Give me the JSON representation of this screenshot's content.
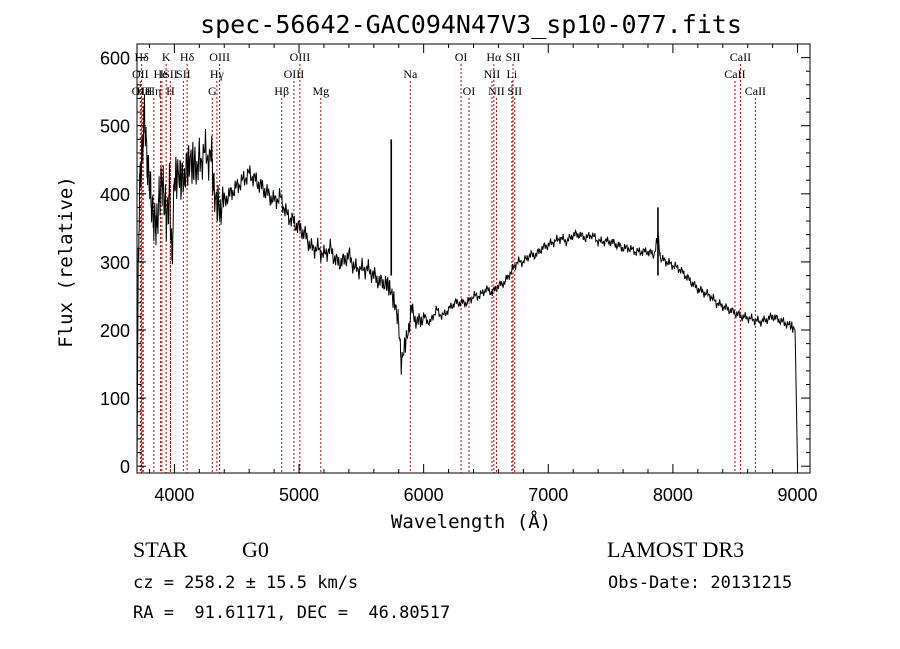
{
  "chart_data": {
    "type": "line",
    "title": "spec-56642-GAC094N47V3_sp10-077.fits",
    "xlabel": "Wavelength (Å)",
    "ylabel": "Flux (relative)",
    "xlim": [
      3700,
      9100
    ],
    "ylim": [
      -10,
      620
    ],
    "xticks": [
      4000,
      5000,
      6000,
      7000,
      8000,
      9000
    ],
    "yticks": [
      0,
      100,
      200,
      300,
      400,
      500,
      600
    ],
    "xtick_labels": [
      "4000",
      "5000",
      "6000",
      "7000",
      "8000",
      "9000"
    ],
    "ytick_labels": [
      "0",
      "100",
      "200",
      "300",
      "400",
      "500",
      "600"
    ],
    "series": [
      {
        "name": "flux",
        "points": [
          [
            3700,
            0
          ],
          [
            3710,
            300
          ],
          [
            3725,
            430
          ],
          [
            3745,
            470
          ],
          [
            3760,
            520
          ],
          [
            3780,
            450
          ],
          [
            3800,
            420
          ],
          [
            3820,
            380
          ],
          [
            3840,
            360
          ],
          [
            3860,
            350
          ],
          [
            3880,
            400
          ],
          [
            3900,
            420
          ],
          [
            3920,
            390
          ],
          [
            3940,
            360
          ],
          [
            3960,
            410
          ],
          [
            3980,
            300
          ],
          [
            4000,
            420
          ],
          [
            4030,
            430
          ],
          [
            4060,
            420
          ],
          [
            4100,
            440
          ],
          [
            4130,
            450
          ],
          [
            4160,
            440
          ],
          [
            4200,
            450
          ],
          [
            4250,
            460
          ],
          [
            4300,
            450
          ],
          [
            4320,
            400
          ],
          [
            4350,
            380
          ],
          [
            4400,
            390
          ],
          [
            4450,
            400
          ],
          [
            4500,
            410
          ],
          [
            4550,
            420
          ],
          [
            4600,
            430
          ],
          [
            4650,
            420
          ],
          [
            4700,
            410
          ],
          [
            4750,
            400
          ],
          [
            4800,
            390
          ],
          [
            4850,
            395
          ],
          [
            4900,
            370
          ],
          [
            4950,
            360
          ],
          [
            5000,
            350
          ],
          [
            5050,
            340
          ],
          [
            5100,
            320
          ],
          [
            5150,
            320
          ],
          [
            5200,
            310
          ],
          [
            5250,
            320
          ],
          [
            5300,
            300
          ],
          [
            5350,
            300
          ],
          [
            5400,
            310
          ],
          [
            5450,
            290
          ],
          [
            5500,
            290
          ],
          [
            5550,
            290
          ],
          [
            5600,
            280
          ],
          [
            5650,
            270
          ],
          [
            5700,
            270
          ],
          [
            5720,
            265
          ],
          [
            5750,
            250
          ],
          [
            5780,
            230
          ],
          [
            5800,
            210
          ],
          [
            5820,
            150
          ],
          [
            5850,
            180
          ],
          [
            5880,
            200
          ],
          [
            5900,
            230
          ],
          [
            5950,
            210
          ],
          [
            6000,
            220
          ],
          [
            6050,
            210
          ],
          [
            6100,
            230
          ],
          [
            6150,
            220
          ],
          [
            6200,
            230
          ],
          [
            6250,
            240
          ],
          [
            6300,
            240
          ],
          [
            6350,
            240
          ],
          [
            6400,
            250
          ],
          [
            6450,
            250
          ],
          [
            6500,
            260
          ],
          [
            6550,
            255
          ],
          [
            6600,
            265
          ],
          [
            6650,
            270
          ],
          [
            6700,
            285
          ],
          [
            6750,
            300
          ],
          [
            6800,
            300
          ],
          [
            6850,
            310
          ],
          [
            6900,
            310
          ],
          [
            6950,
            320
          ],
          [
            7000,
            325
          ],
          [
            7050,
            330
          ],
          [
            7100,
            335
          ],
          [
            7150,
            330
          ],
          [
            7200,
            340
          ],
          [
            7250,
            340
          ],
          [
            7300,
            335
          ],
          [
            7350,
            340
          ],
          [
            7400,
            330
          ],
          [
            7450,
            330
          ],
          [
            7500,
            330
          ],
          [
            7550,
            325
          ],
          [
            7600,
            320
          ],
          [
            7650,
            320
          ],
          [
            7700,
            315
          ],
          [
            7750,
            315
          ],
          [
            7800,
            315
          ],
          [
            7850,
            310
          ],
          [
            7880,
            340
          ],
          [
            7900,
            305
          ],
          [
            7950,
            300
          ],
          [
            8000,
            295
          ],
          [
            8050,
            290
          ],
          [
            8100,
            280
          ],
          [
            8150,
            270
          ],
          [
            8200,
            260
          ],
          [
            8250,
            255
          ],
          [
            8300,
            250
          ],
          [
            8350,
            240
          ],
          [
            8400,
            235
          ],
          [
            8450,
            230
          ],
          [
            8500,
            225
          ],
          [
            8550,
            220
          ],
          [
            8600,
            218
          ],
          [
            8650,
            215
          ],
          [
            8700,
            212
          ],
          [
            8750,
            215
          ],
          [
            8800,
            220
          ],
          [
            8850,
            215
          ],
          [
            8900,
            210
          ],
          [
            8950,
            205
          ],
          [
            8980,
            200
          ],
          [
            9000,
            0
          ]
        ]
      }
    ],
    "spikes": [
      {
        "x": 5740,
        "y": 480
      },
      {
        "x": 7880,
        "y": 380
      }
    ],
    "lines": [
      {
        "label": "Hδ",
        "x": 3737,
        "row": 0
      },
      {
        "label": "OII",
        "x": 3727,
        "row": 1
      },
      {
        "label": "OIII",
        "x": 3740,
        "row": 2
      },
      {
        "label": "Hε",
        "x": 3750,
        "row": 2
      },
      {
        "label": "Hη",
        "x": 3835,
        "row": 2
      },
      {
        "label": "K",
        "x": 3934,
        "row": 0
      },
      {
        "label": "He",
        "x": 3889,
        "row": 1
      },
      {
        "label": "I",
        "x": 3900,
        "row": 1
      },
      {
        "label": "SII",
        "x": 3968,
        "row": 1
      },
      {
        "label": "H",
        "x": 3968,
        "row": 2
      },
      {
        "label": "Hδ",
        "x": 4102,
        "row": 0
      },
      {
        "label": "SII",
        "x": 4072,
        "row": 1
      },
      {
        "label": "OIII",
        "x": 4363,
        "row": 0
      },
      {
        "label": "Hγ",
        "x": 4341,
        "row": 1
      },
      {
        "label": "G",
        "x": 4304,
        "row": 2
      },
      {
        "label": "Hβ",
        "x": 4861,
        "row": 2
      },
      {
        "label": "OIII",
        "x": 5007,
        "row": 0
      },
      {
        "label": "OIII",
        "x": 4959,
        "row": 1
      },
      {
        "label": "Mg",
        "x": 5175,
        "row": 2
      },
      {
        "label": "Na",
        "x": 5893,
        "row": 1
      },
      {
        "label": "OI",
        "x": 6300,
        "row": 0
      },
      {
        "label": "OI",
        "x": 6364,
        "row": 2
      },
      {
        "label": "Hα",
        "x": 6563,
        "row": 0
      },
      {
        "label": "NII",
        "x": 6548,
        "row": 1
      },
      {
        "label": "NII",
        "x": 6584,
        "row": 2
      },
      {
        "label": "SII",
        "x": 6717,
        "row": 0
      },
      {
        "label": "Li",
        "x": 6708,
        "row": 1
      },
      {
        "label": "SII",
        "x": 6731,
        "row": 2
      },
      {
        "label": "CaII",
        "x": 8542,
        "row": 0
      },
      {
        "label": "CaII",
        "x": 8498,
        "row": 1
      },
      {
        "label": "CaII",
        "x": 8662,
        "row": 2
      }
    ]
  },
  "info": {
    "object_class": "STAR",
    "subclass": "G0",
    "survey": "LAMOST DR3",
    "cz": "cz = 258.2 ± 15.5 km/s",
    "obs_date": "Obs-Date: 20131215",
    "coords": "RA =  91.61171, DEC =  46.80517"
  },
  "colors": {
    "line": "#c00000",
    "ink": "#000000"
  }
}
